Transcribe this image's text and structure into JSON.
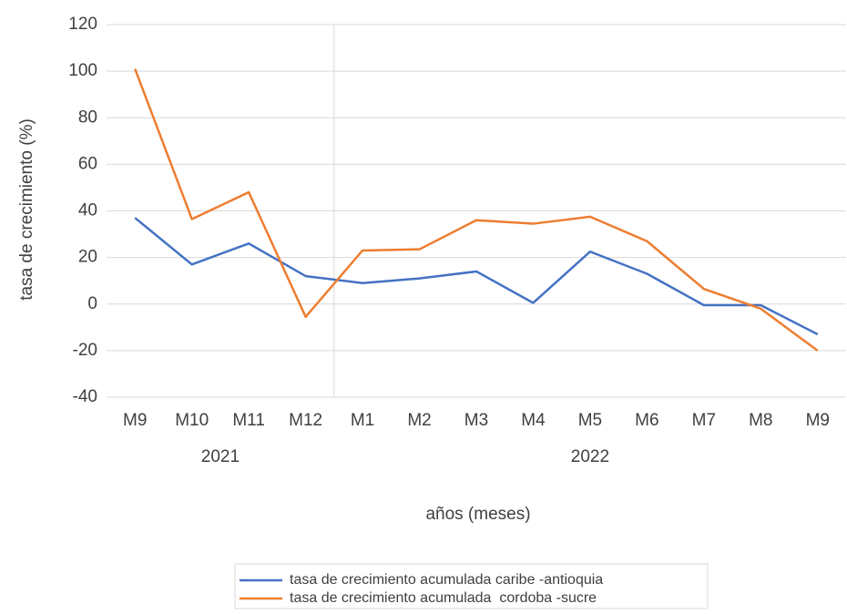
{
  "chart_data": {
    "type": "line",
    "x_label": "años (meses)",
    "y_label": "tasa de crecimiento (%)",
    "categories": [
      "M9",
      "M10",
      "M11",
      "M12",
      "M1",
      "M2",
      "M3",
      "M4",
      "M5",
      "M6",
      "M7",
      "M8",
      "M9"
    ],
    "category_groups": [
      {
        "label": "2021",
        "count": 4
      },
      {
        "label": "2022",
        "count": 9
      }
    ],
    "series": [
      {
        "name": "tasa de crecimiento acumulada caribe -antioquia",
        "color": "#4472c4",
        "values": [
          37,
          17,
          26,
          12,
          9,
          11,
          14,
          0.5,
          22.5,
          13,
          -0.5,
          -0.5,
          -13
        ]
      },
      {
        "name": "tasa de crecimiento acumulada  cordoba -sucre",
        "color": "#ed7d31",
        "values": [
          101,
          36.5,
          48,
          -5.5,
          23,
          23.5,
          36,
          34.5,
          37.5,
          27,
          6.5,
          -2,
          -20
        ]
      }
    ],
    "ylim": [
      -40,
      120
    ],
    "yticks": [
      -40,
      -20,
      0,
      20,
      40,
      60,
      80,
      100,
      120
    ],
    "grid": true,
    "legend": "bottom"
  }
}
